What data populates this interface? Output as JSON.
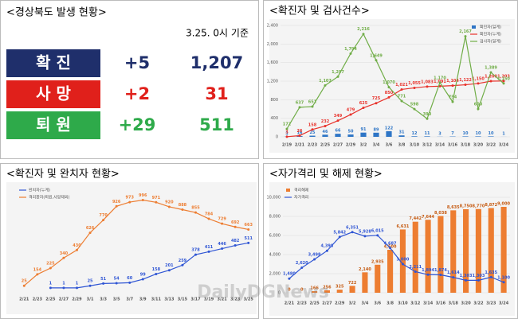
{
  "status_table": {
    "title": "<경상북도 발생 현황>",
    "note": "3.25. 0시 기준",
    "rows": [
      {
        "label": "확 진",
        "change": "+5",
        "total": "1,207",
        "color": "#1f2f6b",
        "text_color": "#1f2f6b"
      },
      {
        "label": "사 망",
        "change": "+2",
        "total": "31",
        "color": "#e0201b",
        "text_color": "#e0201b"
      },
      {
        "label": "퇴 원",
        "change": "+29",
        "total": "511",
        "color": "#2eaa4a",
        "text_color": "#2eaa4a"
      }
    ]
  },
  "watermark": "DailyDGNews",
  "chart_data": [
    {
      "type": "combo",
      "title": "<확진자 및 검사건수>",
      "categories": [
        "2/19",
        "2/21",
        "2/23",
        "2/25",
        "2/27",
        "2/29",
        "3/2",
        "3/4",
        "3/6",
        "3/8",
        "3/10",
        "3/12",
        "3/14",
        "3/16",
        "3/18",
        "3/20",
        "3/22",
        "3/24"
      ],
      "ylim": [
        0,
        2400
      ],
      "yticks": [
        0,
        400,
        800,
        {
          "value": 1200,
          "label": "1,200"
        },
        {
          "value": 1600,
          "label": "1,600"
        },
        {
          "value": 2000,
          "label": "2,000"
        },
        {
          "value": 2400,
          "label": "2,400"
        }
      ],
      "grid": true,
      "legend": "top-right",
      "series": [
        {
          "name": "확진자(일계)",
          "kind": "bar",
          "color": "#2e75c6",
          "values": [
            3,
            16,
            25,
            46,
            66,
            50,
            91,
            89,
            122,
            31,
            12,
            11,
            3,
            7,
            10,
            10,
            10,
            1
          ]
        },
        {
          "name": "확진자(누계)",
          "kind": "line",
          "color": "#e8312a",
          "values": [
            3,
            26,
            158,
            232,
            349,
            479,
            625,
            725,
            850,
            1021,
            1055,
            1083,
            1091,
            1104,
            1122,
            1150,
            1200,
            1203
          ],
          "value_labels": [
            "3",
            "26",
            "158",
            "232",
            "349",
            "479",
            "625",
            "725",
            "850",
            "1,021",
            "1,055",
            "1,083",
            "1,091",
            "1,104",
            "1,122",
            "1,150",
            "1,200",
            "1,203"
          ]
        },
        {
          "name": "검사자(일계)",
          "kind": "line",
          "color": "#70ad47",
          "values": [
            172,
            637,
            651,
            1107,
            1297,
            1794,
            2216,
            1649,
            1070,
            771,
            598,
            390,
            1170,
            754,
            2167,
            600,
            1389,
            1150
          ],
          "value_labels": [
            "172",
            "637",
            "651",
            "1,107",
            "1,297",
            "1,794",
            "2,216",
            "1,649",
            "1,070",
            "771",
            "598",
            "390",
            "1,170",
            "754",
            "2,167",
            "600",
            "1,389",
            "1,150"
          ]
        }
      ]
    },
    {
      "type": "line",
      "title": "<확진자 및 완치자 현황>",
      "categories": [
        "2/21",
        "2/23",
        "2/25",
        "2/27",
        "2/29",
        "3/1",
        "3/3",
        "3/5",
        "3/7",
        "3/9",
        "3/11",
        "3/13",
        "3/15",
        "3/17",
        "3/19",
        "3/21",
        "3/23",
        "3/25"
      ],
      "ylim": [
        0,
        1100
      ],
      "legend": "top-left",
      "series": [
        {
          "name": "완치자(누계)",
          "kind": "line",
          "color": "#2f55d4",
          "values": [
            null,
            null,
            1,
            1,
            1,
            25,
            51,
            54,
            60,
            99,
            158,
            201,
            259,
            378,
            411,
            446,
            482,
            511
          ]
        },
        {
          "name": "격리환자(퇴원,사망제외)",
          "kind": "line",
          "color": "#ed7d31",
          "values": [
            25,
            154,
            225,
            340,
            430,
            626,
            770,
            926,
            973,
            996,
            971,
            920,
            888,
            855,
            784,
            729,
            692,
            663
          ]
        }
      ]
    },
    {
      "type": "combo",
      "title": "<자가격리 및 해제 현황>",
      "categories": [
        "2/21",
        "2/23",
        "2/25",
        "2/27",
        "2/29",
        "3/2",
        "3/4",
        "3/6",
        "3/8",
        "3/10",
        "3/12",
        "3/14",
        "3/16",
        "3/18",
        "3/20",
        "3/22",
        "3/23",
        "3/24"
      ],
      "ylim": [
        0,
        10000
      ],
      "yticks": [
        0,
        {
          "value": 2000,
          "label": "2,000"
        },
        {
          "value": 4000,
          "label": "4,000"
        },
        {
          "value": 6000,
          "label": "6,000"
        },
        {
          "value": 8000,
          "label": "8,000"
        },
        {
          "value": 10000,
          "label": "10,000"
        }
      ],
      "grid": true,
      "legend": "top-left",
      "series": [
        {
          "name": "격리해제",
          "kind": "bar",
          "color": "#ed7d31",
          "values": [
            0,
            0,
            166,
            256,
            325,
            722,
            2140,
            2935,
            4500,
            6631,
            7442,
            7644,
            8038,
            8635,
            8750,
            8770,
            8872,
            9000
          ],
          "value_labels": [
            "0",
            "0",
            "166",
            "256",
            "325",
            "722",
            "2,140",
            "2,935",
            "4,500",
            "6,631",
            "7,442",
            "7,644",
            "8,038",
            "8,635",
            "8,750",
            "8,770",
            "8,872",
            "9,000"
          ]
        },
        {
          "name": "자가격리",
          "kind": "line",
          "color": "#2f55d4",
          "values": [
            1480,
            2620,
            3498,
            4398,
            5842,
            6351,
            5928,
            6015,
            4687,
            3000,
            2211,
            1894,
            1874,
            1614,
            1303,
            1303,
            1635,
            1100
          ],
          "value_labels": [
            "1,480",
            "2,620",
            "3,498",
            "4,398",
            "5,842",
            "6,351",
            "5,928",
            "6,015",
            "4,687",
            "3,000",
            "2,211",
            "1,894",
            "1,874",
            "1,614",
            "1,303",
            "1,303",
            "1,635",
            "1,100"
          ]
        }
      ]
    }
  ]
}
